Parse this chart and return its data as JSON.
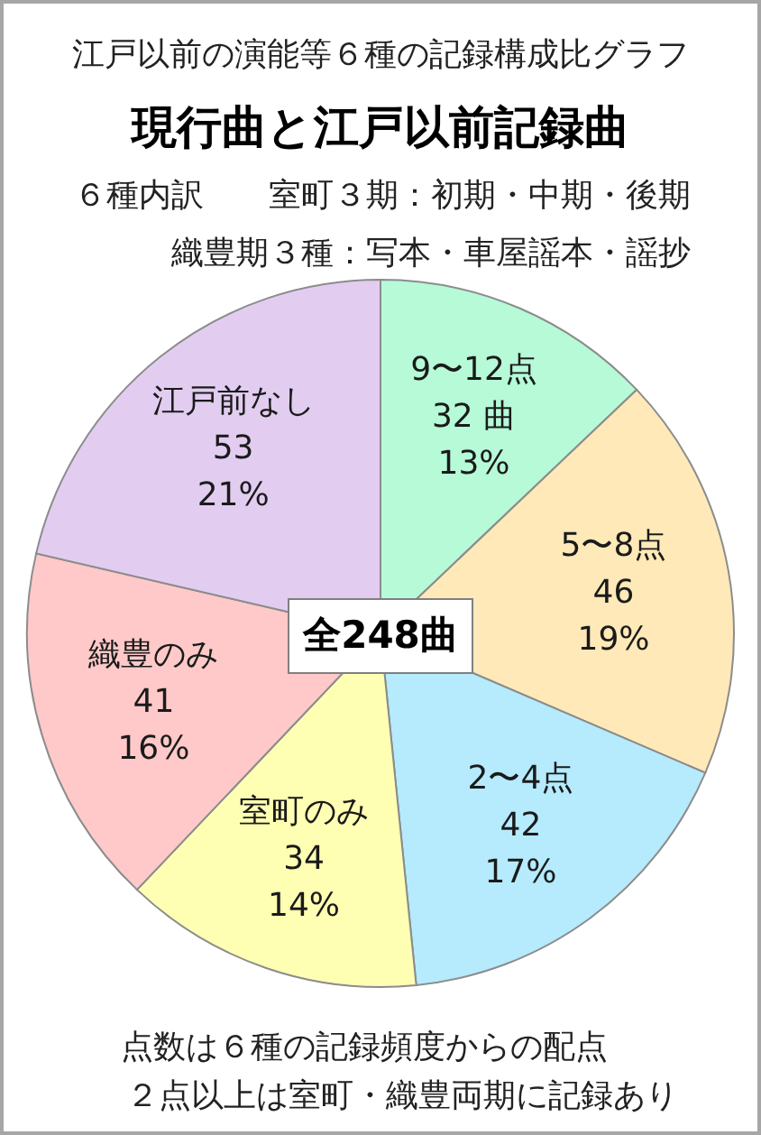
{
  "chart_data": {
    "type": "pie",
    "subtitle": "江戸以前の演能等６種の記録構成比グラフ",
    "title": "現行曲と江戸以前記録曲",
    "categories": [
      "9〜12点",
      "5〜8点",
      "2〜4点",
      "室町のみ",
      "織豊のみ",
      "江戸前なし"
    ],
    "values": [
      32,
      46,
      42,
      34,
      41,
      53
    ],
    "colors": [
      "#b6fad8",
      "#ffe9b8",
      "#b5ebfc",
      "#ffffb3",
      "#ffc9c9",
      "#e2cdf1"
    ],
    "value_labels": [
      "32 曲\n13%",
      "46\n19%",
      "42\n17%",
      "34\n14%",
      "41\n16%",
      "53\n21%"
    ],
    "annotations": [
      "６種内訳　　室町３期：初期・中期・後期",
      "織豊期３種：写本・車屋謡本・謡抄",
      "全248曲",
      "点数は６種の記録頻度からの配点",
      "２点以上は室町・織豊両期に記録あり"
    ]
  }
}
